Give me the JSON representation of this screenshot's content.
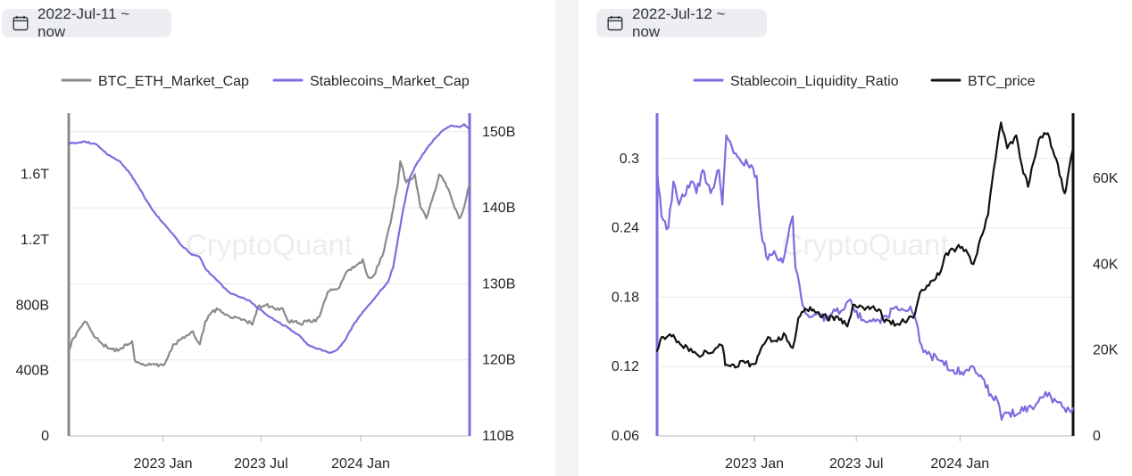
{
  "app": {
    "watermark": "CryptoQuant"
  },
  "panels": [
    {
      "date_range": "2022-Jul-11 ~ now",
      "icon": "calendar-icon"
    },
    {
      "date_range": "2022-Jul-12 ~ now",
      "icon": "calendar-icon"
    }
  ],
  "chart_data": [
    {
      "type": "line",
      "x_ticks": [
        "2023 Jan",
        "2023 Jul",
        "2024 Jan"
      ],
      "x_tick_dates": [
        "2023-01-01",
        "2023-07-01",
        "2024-01-01"
      ],
      "xlim": [
        "2022-07-11",
        "2024-07-20"
      ],
      "left_axis": {
        "ticks": [
          "0",
          "400B",
          "800B",
          "1.2T",
          "1.6T"
        ],
        "tick_values": [
          0,
          400,
          800,
          1200,
          1600
        ],
        "ylim": [
          0,
          1930
        ],
        "unit": "B"
      },
      "right_axis": {
        "ticks": [
          "110B",
          "120B",
          "130B",
          "140B",
          "150B"
        ],
        "tick_values": [
          110,
          120,
          130,
          140,
          150
        ],
        "ylim": [
          110,
          151.5
        ],
        "unit": "B"
      },
      "legend": "top-center",
      "grid": true,
      "series": [
        {
          "name": "BTC_ETH_Market_Cap",
          "axis": "left",
          "color": "#8a8a8a",
          "points": [
            [
              "2022-07-11",
              520
            ],
            [
              "2022-07-20",
              600
            ],
            [
              "2022-08-10",
              700
            ],
            [
              "2022-08-20",
              650
            ],
            [
              "2022-09-05",
              580
            ],
            [
              "2022-09-20",
              540
            ],
            [
              "2022-10-10",
              520
            ],
            [
              "2022-10-25",
              560
            ],
            [
              "2022-11-05",
              580
            ],
            [
              "2022-11-10",
              460
            ],
            [
              "2022-11-25",
              440
            ],
            [
              "2022-12-15",
              440
            ],
            [
              "2023-01-01",
              430
            ],
            [
              "2023-01-10",
              480
            ],
            [
              "2023-01-20",
              560
            ],
            [
              "2023-02-10",
              600
            ],
            [
              "2023-02-25",
              640
            ],
            [
              "2023-03-10",
              560
            ],
            [
              "2023-03-20",
              700
            ],
            [
              "2023-04-10",
              780
            ],
            [
              "2023-04-25",
              740
            ],
            [
              "2023-05-10",
              720
            ],
            [
              "2023-06-01",
              710
            ],
            [
              "2023-06-15",
              680
            ],
            [
              "2023-06-25",
              790
            ],
            [
              "2023-07-10",
              800
            ],
            [
              "2023-07-25",
              780
            ],
            [
              "2023-08-10",
              780
            ],
            [
              "2023-08-20",
              700
            ],
            [
              "2023-09-10",
              690
            ],
            [
              "2023-09-30",
              700
            ],
            [
              "2023-10-10",
              700
            ],
            [
              "2023-10-20",
              760
            ],
            [
              "2023-11-01",
              880
            ],
            [
              "2023-11-20",
              900
            ],
            [
              "2023-12-05",
              1000
            ],
            [
              "2023-12-20",
              1030
            ],
            [
              "2024-01-05",
              1080
            ],
            [
              "2024-01-15",
              970
            ],
            [
              "2024-01-25",
              980
            ],
            [
              "2024-02-10",
              1100
            ],
            [
              "2024-02-25",
              1300
            ],
            [
              "2024-03-10",
              1550
            ],
            [
              "2024-03-14",
              1680
            ],
            [
              "2024-03-25",
              1550
            ],
            [
              "2024-04-10",
              1600
            ],
            [
              "2024-04-20",
              1400
            ],
            [
              "2024-05-01",
              1330
            ],
            [
              "2024-05-15",
              1480
            ],
            [
              "2024-05-25",
              1600
            ],
            [
              "2024-06-05",
              1550
            ],
            [
              "2024-06-20",
              1420
            ],
            [
              "2024-07-01",
              1330
            ],
            [
              "2024-07-10",
              1400
            ],
            [
              "2024-07-20",
              1540
            ]
          ]
        },
        {
          "name": "Stablecoins_Market_Cap",
          "axis": "right",
          "color": "#7d6ce0",
          "points": [
            [
              "2022-07-11",
              148.5
            ],
            [
              "2022-08-10",
              148.7
            ],
            [
              "2022-09-01",
              148.3
            ],
            [
              "2022-09-20",
              147.0
            ],
            [
              "2022-10-15",
              146.0
            ],
            [
              "2022-11-01",
              144.5
            ],
            [
              "2022-11-15",
              143.0
            ],
            [
              "2022-12-01",
              141.0
            ],
            [
              "2022-12-15",
              139.5
            ],
            [
              "2023-01-01",
              138.0
            ],
            [
              "2023-01-20",
              136.5
            ],
            [
              "2023-02-05",
              135.0
            ],
            [
              "2023-02-20",
              134.0
            ],
            [
              "2023-03-10",
              133.5
            ],
            [
              "2023-03-20",
              132.0
            ],
            [
              "2023-04-10",
              130.5
            ],
            [
              "2023-05-01",
              129.0
            ],
            [
              "2023-05-20",
              128.3
            ],
            [
              "2023-06-10",
              127.8
            ],
            [
              "2023-06-25",
              126.8
            ],
            [
              "2023-07-10",
              126.0
            ],
            [
              "2023-08-01",
              125.0
            ],
            [
              "2023-08-20",
              124.2
            ],
            [
              "2023-09-10",
              123.2
            ],
            [
              "2023-09-25",
              122.0
            ],
            [
              "2023-10-10",
              121.5
            ],
            [
              "2023-10-25",
              121.2
            ],
            [
              "2023-11-05",
              120.9
            ],
            [
              "2023-11-20",
              121.4
            ],
            [
              "2023-12-05",
              122.8
            ],
            [
              "2023-12-20",
              124.8
            ],
            [
              "2024-01-05",
              126.3
            ],
            [
              "2024-01-20",
              127.5
            ],
            [
              "2024-02-05",
              129.0
            ],
            [
              "2024-02-20",
              130.2
            ],
            [
              "2024-03-01",
              132.2
            ],
            [
              "2024-03-10",
              136.0
            ],
            [
              "2024-03-20",
              140.0
            ],
            [
              "2024-04-01",
              144.0
            ],
            [
              "2024-04-15",
              146.0
            ],
            [
              "2024-05-01",
              147.7
            ],
            [
              "2024-05-15",
              149.0
            ],
            [
              "2024-06-01",
              150.2
            ],
            [
              "2024-06-15",
              150.8
            ],
            [
              "2024-07-01",
              150.6
            ],
            [
              "2024-07-10",
              151.0
            ],
            [
              "2024-07-20",
              150.3
            ]
          ]
        }
      ]
    },
    {
      "type": "line",
      "x_ticks": [
        "2023 Jan",
        "2023 Jul",
        "2024 Jan"
      ],
      "x_tick_dates": [
        "2023-01-01",
        "2023-07-01",
        "2024-01-01"
      ],
      "xlim": [
        "2022-07-12",
        "2024-07-20"
      ],
      "left_axis": {
        "ticks": [
          "0.06",
          "0.12",
          "0.18",
          "0.24",
          "0.3"
        ],
        "tick_values": [
          0.06,
          0.12,
          0.18,
          0.24,
          0.3
        ],
        "ylim": [
          0.06,
          0.333
        ]
      },
      "right_axis": {
        "ticks": [
          "0",
          "20K",
          "40K",
          "60K"
        ],
        "tick_values": [
          0,
          20000,
          40000,
          60000
        ],
        "ylim": [
          0,
          73500
        ]
      },
      "legend": "top-center",
      "grid": true,
      "series": [
        {
          "name": "Stablecoin_Liquidity_Ratio",
          "axis": "left",
          "color": "#7d6ce0",
          "points": [
            [
              "2022-07-12",
              0.29
            ],
            [
              "2022-07-20",
              0.25
            ],
            [
              "2022-08-01",
              0.24
            ],
            [
              "2022-08-10",
              0.28
            ],
            [
              "2022-08-20",
              0.26
            ],
            [
              "2022-09-10",
              0.28
            ],
            [
              "2022-09-20",
              0.27
            ],
            [
              "2022-10-01",
              0.29
            ],
            [
              "2022-10-15",
              0.27
            ],
            [
              "2022-10-30",
              0.29
            ],
            [
              "2022-11-05",
              0.26
            ],
            [
              "2022-11-12",
              0.32
            ],
            [
              "2022-11-22",
              0.31
            ],
            [
              "2022-12-05",
              0.3
            ],
            [
              "2022-12-20",
              0.295
            ],
            [
              "2023-01-05",
              0.285
            ],
            [
              "2023-01-12",
              0.24
            ],
            [
              "2023-01-22",
              0.215
            ],
            [
              "2023-02-05",
              0.22
            ],
            [
              "2023-02-20",
              0.21
            ],
            [
              "2023-03-01",
              0.23
            ],
            [
              "2023-03-10",
              0.25
            ],
            [
              "2023-03-15",
              0.205
            ],
            [
              "2023-03-25",
              0.18
            ],
            [
              "2023-04-05",
              0.165
            ],
            [
              "2023-04-20",
              0.165
            ],
            [
              "2023-05-10",
              0.16
            ],
            [
              "2023-05-25",
              0.168
            ],
            [
              "2023-06-10",
              0.17
            ],
            [
              "2023-06-20",
              0.178
            ],
            [
              "2023-07-10",
              0.16
            ],
            [
              "2023-07-25",
              0.16
            ],
            [
              "2023-08-10",
              0.16
            ],
            [
              "2023-08-25",
              0.163
            ],
            [
              "2023-09-10",
              0.172
            ],
            [
              "2023-09-20",
              0.17
            ],
            [
              "2023-10-05",
              0.172
            ],
            [
              "2023-10-15",
              0.16
            ],
            [
              "2023-10-25",
              0.138
            ],
            [
              "2023-11-10",
              0.13
            ],
            [
              "2023-12-01",
              0.125
            ],
            [
              "2023-12-20",
              0.117
            ],
            [
              "2024-01-10",
              0.116
            ],
            [
              "2024-01-20",
              0.12
            ],
            [
              "2024-02-10",
              0.11
            ],
            [
              "2024-02-25",
              0.096
            ],
            [
              "2024-03-10",
              0.088
            ],
            [
              "2024-03-15",
              0.074
            ],
            [
              "2024-03-25",
              0.08
            ],
            [
              "2024-04-10",
              0.078
            ],
            [
              "2024-04-20",
              0.085
            ],
            [
              "2024-05-10",
              0.083
            ],
            [
              "2024-06-01",
              0.098
            ],
            [
              "2024-06-20",
              0.09
            ],
            [
              "2024-07-01",
              0.085
            ],
            [
              "2024-07-20",
              0.084
            ]
          ]
        },
        {
          "name": "BTC_price",
          "axis": "right",
          "color": "#111111",
          "points": [
            [
              "2022-07-12",
              19800
            ],
            [
              "2022-07-20",
              23000
            ],
            [
              "2022-08-10",
              23500
            ],
            [
              "2022-08-25",
              21000
            ],
            [
              "2022-09-10",
              20300
            ],
            [
              "2022-09-20",
              19100
            ],
            [
              "2022-10-10",
              19300
            ],
            [
              "2022-10-25",
              20500
            ],
            [
              "2022-11-05",
              21000
            ],
            [
              "2022-11-10",
              16500
            ],
            [
              "2022-11-25",
              16600
            ],
            [
              "2022-12-15",
              17000
            ],
            [
              "2023-01-01",
              16700
            ],
            [
              "2023-01-15",
              21000
            ],
            [
              "2023-01-25",
              23000
            ],
            [
              "2023-02-10",
              22000
            ],
            [
              "2023-02-25",
              23500
            ],
            [
              "2023-03-10",
              20500
            ],
            [
              "2023-03-20",
              27500
            ],
            [
              "2023-04-10",
              30000
            ],
            [
              "2023-04-25",
              28800
            ],
            [
              "2023-05-10",
              27500
            ],
            [
              "2023-06-01",
              27000
            ],
            [
              "2023-06-15",
              25500
            ],
            [
              "2023-06-25",
              30500
            ],
            [
              "2023-07-10",
              30200
            ],
            [
              "2023-07-25",
              29500
            ],
            [
              "2023-08-10",
              29500
            ],
            [
              "2023-08-20",
              26500
            ],
            [
              "2023-09-10",
              26000
            ],
            [
              "2023-09-30",
              27000
            ],
            [
              "2023-10-10",
              27500
            ],
            [
              "2023-10-25",
              34000
            ],
            [
              "2023-11-10",
              36000
            ],
            [
              "2023-11-25",
              37500
            ],
            [
              "2023-12-05",
              42000
            ],
            [
              "2023-12-20",
              43500
            ],
            [
              "2024-01-05",
              44000
            ],
            [
              "2024-01-15",
              42500
            ],
            [
              "2024-01-25",
              40000
            ],
            [
              "2024-02-10",
              47000
            ],
            [
              "2024-02-20",
              51500
            ],
            [
              "2024-03-01",
              62000
            ],
            [
              "2024-03-14",
              73000
            ],
            [
              "2024-03-25",
              67000
            ],
            [
              "2024-04-10",
              70000
            ],
            [
              "2024-04-20",
              63000
            ],
            [
              "2024-05-01",
              58000
            ],
            [
              "2024-05-20",
              69000
            ],
            [
              "2024-06-05",
              70500
            ],
            [
              "2024-06-20",
              64500
            ],
            [
              "2024-07-05",
              56500
            ],
            [
              "2024-07-10",
              60000
            ],
            [
              "2024-07-20",
              67000
            ]
          ]
        }
      ]
    }
  ]
}
